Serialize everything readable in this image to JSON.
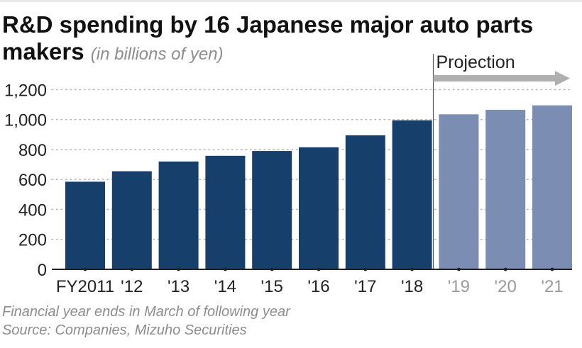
{
  "title": "R&D spending by 16 Japanese major auto parts makers",
  "subtitle": "(in billions of yen)",
  "projection_label": "Projection",
  "notes": {
    "line1": "Financial year ends in March of following year",
    "line2": "Source: Companies, Mizuho Securities"
  },
  "colors": {
    "actual": "#173f6b",
    "projected": "#7c8db3",
    "arrow": "#b0b0b0",
    "grid": "#b8b8b8",
    "tick_actual": "#222222",
    "tick_projected": "#9a9a9a"
  },
  "chart_data": {
    "type": "bar",
    "categories": [
      "FY2011",
      "'12",
      "'13",
      "'14",
      "'15",
      "'16",
      "'17",
      "'18",
      "'19",
      "'20",
      "'21"
    ],
    "values": [
      585,
      655,
      720,
      758,
      790,
      815,
      895,
      995,
      1035,
      1065,
      1095
    ],
    "projected": [
      false,
      false,
      false,
      false,
      false,
      false,
      false,
      false,
      true,
      true,
      true
    ],
    "yticks": [
      "0",
      "200",
      "400",
      "600",
      "800",
      "1,000",
      "1,200"
    ],
    "ylim": [
      0,
      1300
    ],
    "grid": true,
    "xlabel": "",
    "ylabel": ""
  }
}
